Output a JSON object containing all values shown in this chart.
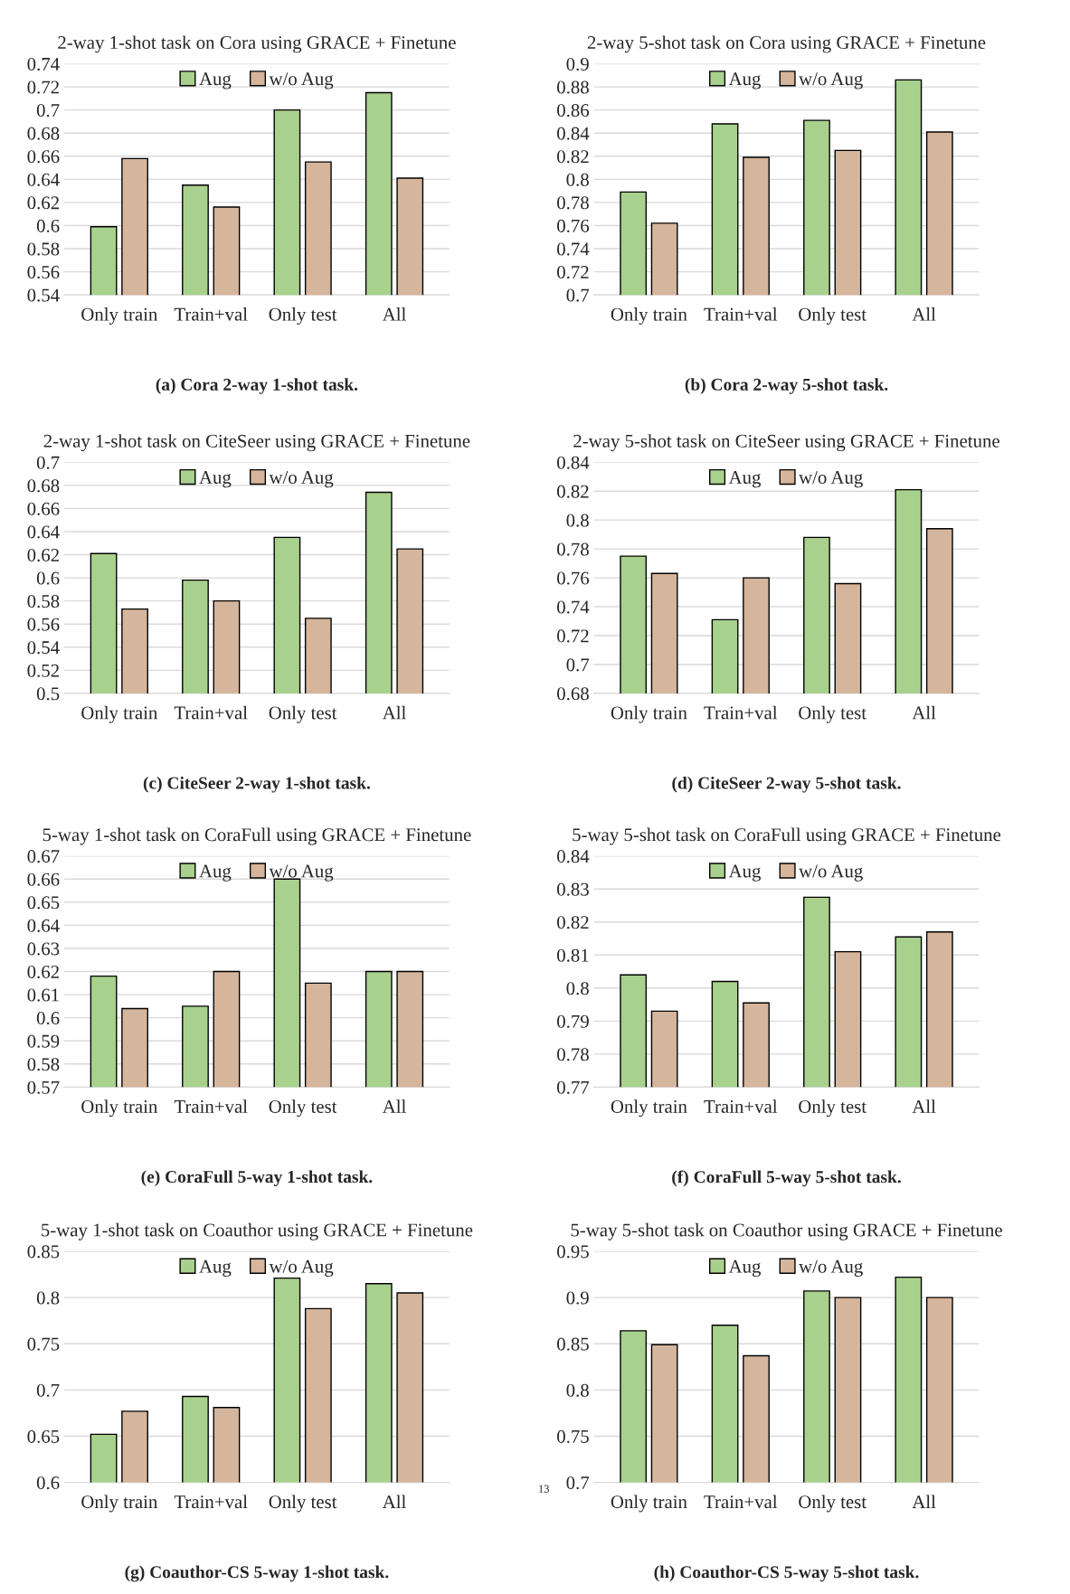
{
  "chart_data": [
    {
      "type": "bar",
      "title": "2-way 1-shot task on Cora using GRACE + Finetune",
      "categories": [
        "Only train",
        "Train+val",
        "Only test",
        "All"
      ],
      "series": [
        {
          "name": "Aug",
          "color": "#a9d18e",
          "values": [
            0.599,
            0.635,
            0.7,
            0.715
          ]
        },
        {
          "name": "w/o Aug",
          "color": "#d5b59c",
          "values": [
            0.658,
            0.616,
            0.655,
            0.641
          ]
        }
      ],
      "ylim": [
        0.54,
        0.74
      ],
      "yticks": [
        0.54,
        0.56,
        0.58,
        0.6,
        0.62,
        0.64,
        0.66,
        0.68,
        0.7,
        0.72,
        0.74
      ],
      "grid": "y",
      "legend": "top",
      "annotations": [
        "(a) Cora 2-way 1-shot task."
      ]
    },
    {
      "type": "bar",
      "title": "2-way 5-shot task on Cora using GRACE + Finetune",
      "categories": [
        "Only train",
        "Train+val",
        "Only test",
        "All"
      ],
      "series": [
        {
          "name": "Aug",
          "color": "#a9d18e",
          "values": [
            0.789,
            0.848,
            0.851,
            0.886
          ]
        },
        {
          "name": "w/o Aug",
          "color": "#d5b59c",
          "values": [
            0.762,
            0.819,
            0.825,
            0.841
          ]
        }
      ],
      "ylim": [
        0.7,
        0.9
      ],
      "yticks": [
        0.7,
        0.72,
        0.74,
        0.76,
        0.78,
        0.8,
        0.82,
        0.84,
        0.86,
        0.88,
        0.9
      ],
      "grid": "y",
      "legend": "top",
      "annotations": [
        "(b) Cora 2-way 5-shot task."
      ]
    },
    {
      "type": "bar",
      "title": "2-way 1-shot task on CiteSeer using GRACE + Finetune",
      "categories": [
        "Only train",
        "Train+val",
        "Only test",
        "All"
      ],
      "series": [
        {
          "name": "Aug",
          "color": "#a9d18e",
          "values": [
            0.621,
            0.598,
            0.635,
            0.674
          ]
        },
        {
          "name": "w/o Aug",
          "color": "#d5b59c",
          "values": [
            0.573,
            0.58,
            0.565,
            0.625
          ]
        }
      ],
      "ylim": [
        0.5,
        0.7
      ],
      "yticks": [
        0.5,
        0.52,
        0.54,
        0.56,
        0.58,
        0.6,
        0.62,
        0.64,
        0.66,
        0.68,
        0.7
      ],
      "grid": "y",
      "legend": "top",
      "annotations": [
        "(c) CiteSeer 2-way 1-shot task."
      ]
    },
    {
      "type": "bar",
      "title": "2-way 5-shot task on CiteSeer using GRACE + Finetune",
      "categories": [
        "Only train",
        "Train+val",
        "Only test",
        "All"
      ],
      "series": [
        {
          "name": "Aug",
          "color": "#a9d18e",
          "values": [
            0.775,
            0.731,
            0.788,
            0.821
          ]
        },
        {
          "name": "w/o Aug",
          "color": "#d5b59c",
          "values": [
            0.763,
            0.76,
            0.756,
            0.794
          ]
        }
      ],
      "ylim": [
        0.68,
        0.84
      ],
      "yticks": [
        0.68,
        0.7,
        0.72,
        0.74,
        0.76,
        0.78,
        0.8,
        0.82,
        0.84
      ],
      "grid": "y",
      "legend": "top",
      "annotations": [
        "(d) CiteSeer 2-way 5-shot task."
      ]
    },
    {
      "type": "bar",
      "title": "5-way 1-shot task on CoraFull using GRACE + Finetune",
      "categories": [
        "Only train",
        "Train+val",
        "Only test",
        "All"
      ],
      "series": [
        {
          "name": "Aug",
          "color": "#a9d18e",
          "values": [
            0.618,
            0.605,
            0.66,
            0.62
          ]
        },
        {
          "name": "w/o Aug",
          "color": "#d5b59c",
          "values": [
            0.604,
            0.62,
            0.615,
            0.62
          ]
        }
      ],
      "ylim": [
        0.57,
        0.67
      ],
      "yticks": [
        0.57,
        0.58,
        0.59,
        0.6,
        0.61,
        0.62,
        0.63,
        0.64,
        0.65,
        0.66,
        0.67
      ],
      "grid": "y",
      "legend": "top",
      "annotations": [
        "(e) CoraFull 5-way 1-shot task."
      ]
    },
    {
      "type": "bar",
      "title": "5-way 5-shot task on CoraFull using GRACE + Finetune",
      "categories": [
        "Only train",
        "Train+val",
        "Only test",
        "All"
      ],
      "series": [
        {
          "name": "Aug",
          "color": "#a9d18e",
          "values": [
            0.804,
            0.802,
            0.8275,
            0.8155
          ]
        },
        {
          "name": "w/o Aug",
          "color": "#d5b59c",
          "values": [
            0.793,
            0.7955,
            0.811,
            0.817
          ]
        }
      ],
      "ylim": [
        0.77,
        0.84
      ],
      "yticks": [
        0.77,
        0.78,
        0.79,
        0.8,
        0.81,
        0.82,
        0.83,
        0.84
      ],
      "grid": "y",
      "legend": "top",
      "annotations": [
        "(f) CoraFull 5-way 5-shot task."
      ]
    },
    {
      "type": "bar",
      "title": "5-way 1-shot task on Coauthor using GRACE + Finetune",
      "categories": [
        "Only train",
        "Train+val",
        "Only test",
        "All"
      ],
      "series": [
        {
          "name": "Aug",
          "color": "#a9d18e",
          "values": [
            0.652,
            0.693,
            0.821,
            0.815
          ]
        },
        {
          "name": "w/o Aug",
          "color": "#d5b59c",
          "values": [
            0.677,
            0.681,
            0.788,
            0.805
          ]
        }
      ],
      "ylim": [
        0.6,
        0.85
      ],
      "yticks": [
        0.6,
        0.65,
        0.7,
        0.75,
        0.8,
        0.85
      ],
      "grid": "y",
      "legend": "top",
      "annotations": [
        "(g) Coauthor-CS 5-way 1-shot task."
      ]
    },
    {
      "type": "bar",
      "title": "5-way 5-shot task on Coauthor using GRACE + Finetune",
      "categories": [
        "Only train",
        "Train+val",
        "Only test",
        "All"
      ],
      "series": [
        {
          "name": "Aug",
          "color": "#a9d18e",
          "values": [
            0.864,
            0.87,
            0.907,
            0.922
          ]
        },
        {
          "name": "w/o Aug",
          "color": "#d5b59c",
          "values": [
            0.849,
            0.837,
            0.9,
            0.9
          ]
        }
      ],
      "ylim": [
        0.7,
        0.95
      ],
      "yticks": [
        0.7,
        0.75,
        0.8,
        0.85,
        0.9,
        0.95
      ],
      "grid": "y",
      "legend": "top",
      "annotations": [
        "(h) Coauthor-CS 5-way 5-shot task.",
        "13"
      ]
    }
  ]
}
